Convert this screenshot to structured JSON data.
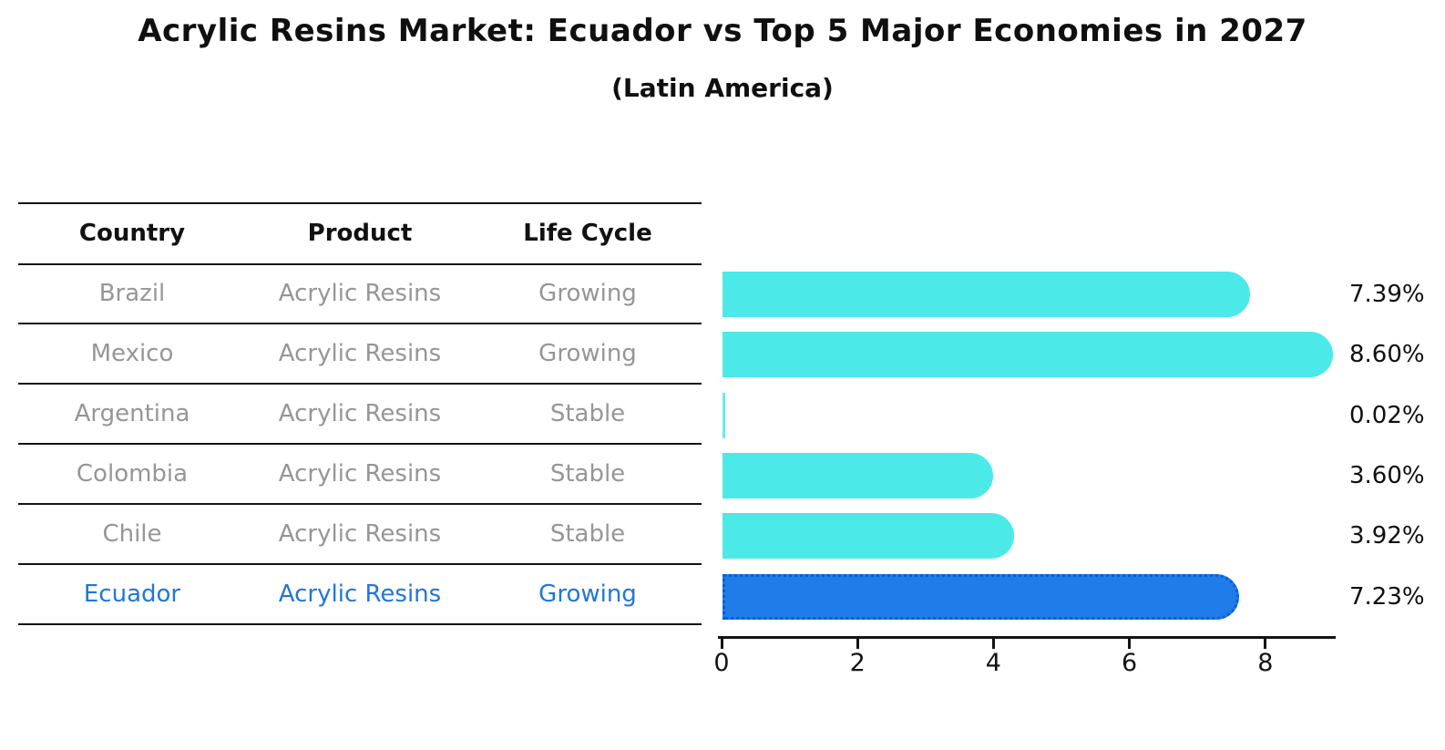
{
  "chart_data": {
    "type": "bar",
    "orientation": "horizontal",
    "title": "Acrylic Resins Market: Ecuador vs Top 5 Major Economies in 2027",
    "subtitle": "(Latin America)",
    "categories": [
      "Brazil",
      "Mexico",
      "Argentina",
      "Colombia",
      "Chile",
      "Ecuador"
    ],
    "values": [
      7.39,
      8.6,
      0.02,
      3.6,
      3.92,
      7.23
    ],
    "value_labels": [
      "7.39%",
      "8.60%",
      "0.02%",
      "3.60%",
      "3.92%",
      "7.23%"
    ],
    "xticks": [
      "0",
      "2",
      "4",
      "6",
      "8"
    ],
    "xlim": [
      0,
      9
    ],
    "grid": false,
    "legend": "none",
    "xlabel": "",
    "ylabel": "",
    "bar_color": "#4BE9E7",
    "highlight_color": "#1F7CE8",
    "highlight_index": 5
  },
  "table": {
    "headers": [
      "Country",
      "Product",
      "Life Cycle"
    ],
    "rows": [
      {
        "country": "Brazil",
        "product": "Acrylic Resins",
        "life_cycle": "Growing",
        "highlight": false
      },
      {
        "country": "Mexico",
        "product": "Acrylic Resins",
        "life_cycle": "Growing",
        "highlight": false
      },
      {
        "country": "Argentina",
        "product": "Acrylic Resins",
        "life_cycle": "Stable",
        "highlight": false
      },
      {
        "country": "Colombia",
        "product": "Acrylic Resins",
        "life_cycle": "Stable",
        "highlight": false
      },
      {
        "country": "Chile",
        "product": "Acrylic Resins",
        "life_cycle": "Stable",
        "highlight": false
      },
      {
        "country": "Ecuador",
        "product": "Acrylic Resins",
        "life_cycle": "Growing",
        "highlight": true
      }
    ]
  },
  "colors": {
    "bar": "#4BE9E7",
    "sliver_bar": "#6FE8E8",
    "highlight_bar": "#1F7CE8",
    "highlight_bar_border": "#0D5BD6",
    "highlight_text": "#2176DB",
    "table_text": "#969696",
    "heading_text": "#0f0f0f",
    "axis": "#141414"
  }
}
